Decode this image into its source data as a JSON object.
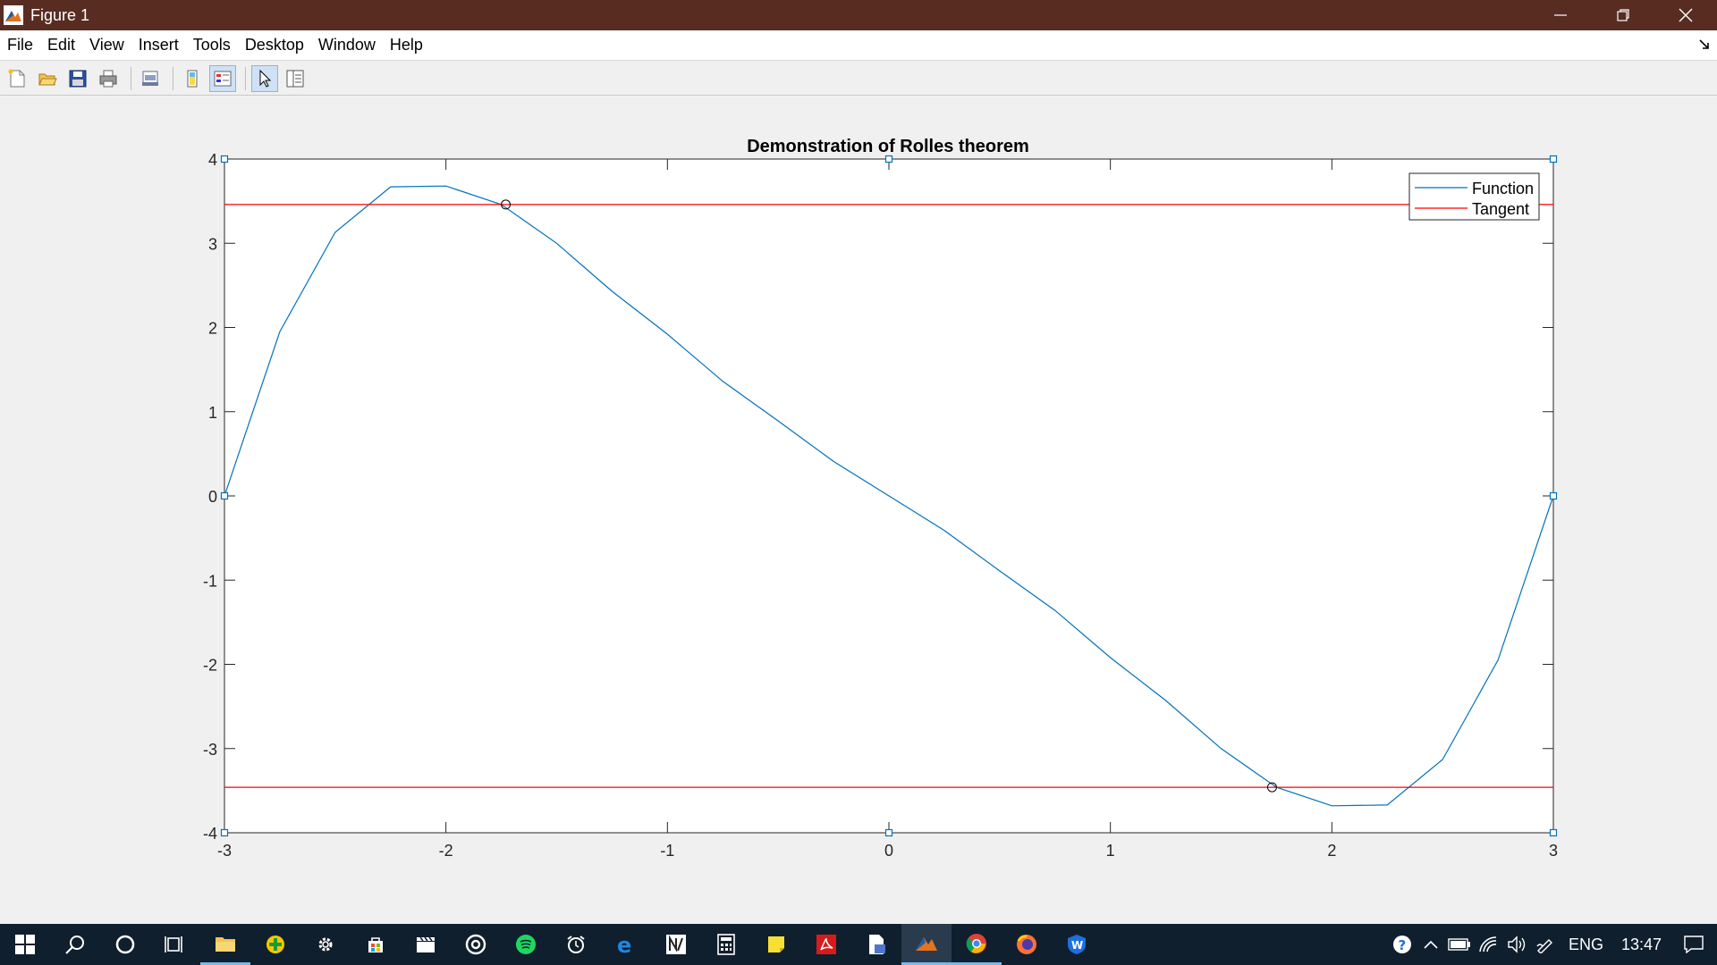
{
  "window": {
    "title": "Figure 1"
  },
  "menu": {
    "items": [
      "File",
      "Edit",
      "View",
      "Insert",
      "Tools",
      "Desktop",
      "Window",
      "Help"
    ]
  },
  "toolbar": {
    "buttons": [
      "new-figure",
      "open-file",
      "save",
      "print",
      "print-preview",
      "colorbar",
      "legend",
      "edit-plot",
      "property-inspector"
    ]
  },
  "chart_data": {
    "type": "line",
    "title": "Demonstration of Rolles theorem",
    "xlabel": "",
    "ylabel": "",
    "xlim": [
      -3,
      3
    ],
    "ylim": [
      -4,
      4
    ],
    "xticks": [
      -3,
      -2,
      -1,
      0,
      1,
      2,
      3
    ],
    "yticks": [
      -4,
      -3,
      -2,
      -1,
      0,
      1,
      2,
      3,
      4
    ],
    "grid": false,
    "legend_position": "top-right",
    "series": [
      {
        "name": "Function",
        "color": "#0072bd",
        "x": [
          -3,
          -2.75,
          -2.5,
          -2.25,
          -2,
          -1.75,
          -1.5,
          -1.25,
          -1,
          -0.75,
          -0.5,
          -0.25,
          0,
          0.25,
          0.5,
          0.75,
          1,
          1.25,
          1.5,
          1.75,
          2,
          2.25,
          2.5,
          2.75,
          3
        ],
        "y": [
          0,
          1.95,
          3.13,
          3.67,
          3.68,
          3.46,
          3.0,
          2.43,
          1.92,
          1.36,
          0.89,
          0.41,
          0,
          -0.41,
          -0.89,
          -1.36,
          -1.92,
          -2.43,
          -3.0,
          -3.46,
          -3.68,
          -3.67,
          -3.13,
          -1.95,
          0
        ]
      },
      {
        "name": "Tangent",
        "color": "#ff0000",
        "x": [
          -3,
          3
        ],
        "y": [
          3.46,
          3.46
        ]
      },
      {
        "name": "",
        "color": "#ff0000",
        "x": [
          -3,
          3
        ],
        "y": [
          -3.46,
          -3.46
        ]
      }
    ],
    "markers": [
      {
        "x": -1.73,
        "y": 3.46
      },
      {
        "x": 1.73,
        "y": -3.46
      }
    ]
  },
  "taskbar": {
    "icons": [
      "start",
      "search",
      "cortana",
      "task-view",
      "file-explorer",
      "app-green",
      "settings",
      "store",
      "video",
      "music",
      "spotify",
      "alarms",
      "edge",
      "app-n",
      "calculator",
      "sticky-notes",
      "acrobat",
      "document-app",
      "matlab",
      "chrome",
      "firefox",
      "app-w"
    ],
    "tray": {
      "language": "ENG",
      "time": "13:47"
    }
  }
}
